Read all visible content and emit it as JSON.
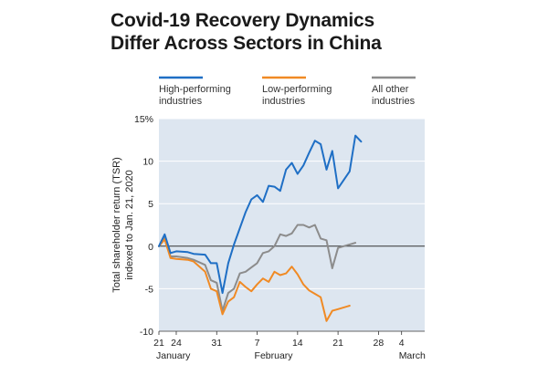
{
  "title_line1": "Covid-19 Recovery Dynamics",
  "title_line2": "Differ Across Sectors in China",
  "chart_data": {
    "type": "line",
    "title": "Covid-19 Recovery Dynamics Differ Across Sectors in China",
    "ylabel_line1": "Total shareholder return (TSR)",
    "ylabel_line2": "indexed to Jan. 21, 2020",
    "ylim": [
      -10,
      15
    ],
    "yticks": [
      {
        "value": 15,
        "label": "15%"
      },
      {
        "value": 10,
        "label": "10"
      },
      {
        "value": 5,
        "label": "5"
      },
      {
        "value": 0,
        "label": "0"
      },
      {
        "value": -5,
        "label": "-5"
      },
      {
        "value": -10,
        "label": "-10"
      }
    ],
    "xlim": [
      21,
      67
    ],
    "xticks": [
      {
        "value": 21,
        "label": "21"
      },
      {
        "value": 24,
        "label": "24"
      },
      {
        "value": 31,
        "label": "31"
      },
      {
        "value": 38,
        "label": "7"
      },
      {
        "value": 45,
        "label": "14"
      },
      {
        "value": 52,
        "label": "21"
      },
      {
        "value": 59,
        "label": "28"
      },
      {
        "value": 63,
        "label": "4"
      }
    ],
    "month_labels": [
      {
        "value": 21,
        "label": "January"
      },
      {
        "value": 38,
        "label": "February"
      },
      {
        "value": 63,
        "label": "March"
      }
    ],
    "grid": "horizontal",
    "legend_position": "top",
    "series": [
      {
        "name": "High-performing industries",
        "legend_line1": "High-performing",
        "legend_line2": "industries",
        "color": "#1f6fc5",
        "points": [
          [
            21,
            0
          ],
          [
            22,
            1.4
          ],
          [
            23,
            -0.8
          ],
          [
            24,
            -0.6
          ],
          [
            26,
            -0.7
          ],
          [
            27,
            -0.9
          ],
          [
            29,
            -1.0
          ],
          [
            30,
            -2.0
          ],
          [
            31,
            -2.0
          ],
          [
            32,
            -5.5
          ],
          [
            33,
            -2.0
          ],
          [
            34,
            0.2
          ],
          [
            36,
            4.0
          ],
          [
            37,
            5.5
          ],
          [
            38,
            6.0
          ],
          [
            39,
            5.2
          ],
          [
            40,
            7.1
          ],
          [
            41,
            7.0
          ],
          [
            42,
            6.5
          ],
          [
            43,
            9.0
          ],
          [
            44,
            9.8
          ],
          [
            45,
            8.5
          ],
          [
            46,
            9.5
          ],
          [
            47,
            11.0
          ],
          [
            48,
            12.4
          ],
          [
            49,
            12.0
          ],
          [
            50,
            9.0
          ],
          [
            51,
            11.2
          ],
          [
            52,
            6.8
          ],
          [
            54,
            8.8
          ],
          [
            55,
            13.0
          ],
          [
            56,
            12.3
          ]
        ]
      },
      {
        "name": "Low-performing industries",
        "legend_line1": "Low-performing",
        "legend_line2": "industries",
        "color": "#f08a24",
        "points": [
          [
            21,
            0
          ],
          [
            22,
            0.8
          ],
          [
            23,
            -1.4
          ],
          [
            24,
            -1.5
          ],
          [
            26,
            -1.6
          ],
          [
            27,
            -1.8
          ],
          [
            29,
            -3.0
          ],
          [
            30,
            -5.0
          ],
          [
            31,
            -5.3
          ],
          [
            32,
            -8.0
          ],
          [
            33,
            -6.5
          ],
          [
            34,
            -6.0
          ],
          [
            35,
            -4.2
          ],
          [
            36,
            -4.8
          ],
          [
            37,
            -5.3
          ],
          [
            38,
            -4.5
          ],
          [
            39,
            -3.8
          ],
          [
            40,
            -4.2
          ],
          [
            41,
            -3.0
          ],
          [
            42,
            -3.4
          ],
          [
            43,
            -3.2
          ],
          [
            44,
            -2.4
          ],
          [
            45,
            -3.3
          ],
          [
            46,
            -4.5
          ],
          [
            47,
            -5.2
          ],
          [
            48,
            -5.6
          ],
          [
            49,
            -6.0
          ],
          [
            50,
            -8.8
          ],
          [
            51,
            -7.6
          ],
          [
            52,
            -7.4
          ],
          [
            54,
            -7.0
          ]
        ]
      },
      {
        "name": "All other industries",
        "legend_line1": "All other",
        "legend_line2": "industries",
        "color": "#8c8c8c",
        "points": [
          [
            21,
            0
          ],
          [
            22,
            1.0
          ],
          [
            23,
            -1.2
          ],
          [
            24,
            -1.2
          ],
          [
            26,
            -1.4
          ],
          [
            27,
            -1.6
          ],
          [
            29,
            -2.2
          ],
          [
            30,
            -4.0
          ],
          [
            31,
            -4.3
          ],
          [
            32,
            -7.6
          ],
          [
            33,
            -5.5
          ],
          [
            34,
            -5.0
          ],
          [
            35,
            -3.2
          ],
          [
            36,
            -3.0
          ],
          [
            37,
            -2.5
          ],
          [
            38,
            -2.0
          ],
          [
            39,
            -0.8
          ],
          [
            40,
            -0.6
          ],
          [
            41,
            0.0
          ],
          [
            42,
            1.4
          ],
          [
            43,
            1.2
          ],
          [
            44,
            1.5
          ],
          [
            45,
            2.5
          ],
          [
            46,
            2.5
          ],
          [
            47,
            2.2
          ],
          [
            48,
            2.5
          ],
          [
            49,
            0.9
          ],
          [
            50,
            0.7
          ],
          [
            51,
            -2.6
          ],
          [
            52,
            -0.2
          ],
          [
            54,
            0.2
          ],
          [
            55,
            0.4
          ]
        ]
      }
    ]
  }
}
